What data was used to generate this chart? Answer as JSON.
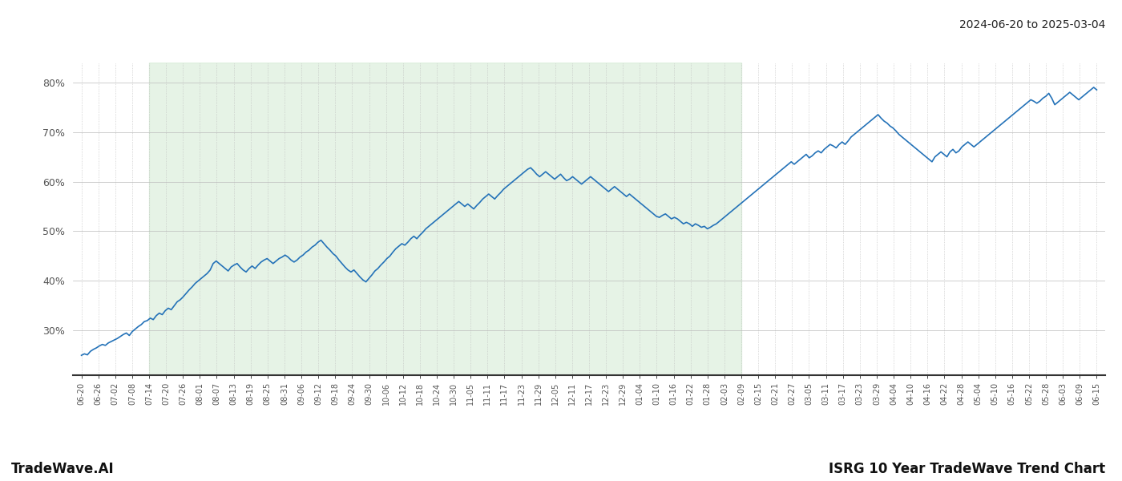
{
  "title_top_right": "2024-06-20 to 2025-03-04",
  "footer_left": "TradeWave.AI",
  "footer_right": "ISRG 10 Year TradeWave Trend Chart",
  "line_color": "#2472b8",
  "line_width": 1.2,
  "shade_color": "#c8e6c9",
  "shade_alpha": 0.45,
  "background_color": "#ffffff",
  "grid_color": "#bbbbbb",
  "ylim": [
    21,
    84
  ],
  "yticks": [
    30,
    40,
    50,
    60,
    70,
    80
  ],
  "x_labels": [
    "06-20",
    "06-26",
    "07-02",
    "07-08",
    "07-14",
    "07-20",
    "07-26",
    "08-01",
    "08-07",
    "08-13",
    "08-19",
    "08-25",
    "08-31",
    "09-06",
    "09-12",
    "09-18",
    "09-24",
    "09-30",
    "10-06",
    "10-12",
    "10-18",
    "10-24",
    "10-30",
    "11-05",
    "11-11",
    "11-17",
    "11-23",
    "11-29",
    "12-05",
    "12-11",
    "12-17",
    "12-23",
    "12-29",
    "01-04",
    "01-10",
    "01-16",
    "01-22",
    "01-28",
    "02-03",
    "02-09",
    "02-15",
    "02-21",
    "02-27",
    "03-05",
    "03-11",
    "03-17",
    "03-23",
    "03-29",
    "04-04",
    "04-10",
    "04-16",
    "04-22",
    "04-28",
    "05-04",
    "05-10",
    "05-16",
    "05-22",
    "05-28",
    "06-03",
    "06-09",
    "06-15"
  ],
  "shade_start_label": "07-14",
  "shade_end_label": "02-09",
  "y_values": [
    25.0,
    25.3,
    25.1,
    25.8,
    26.2,
    26.5,
    26.9,
    27.2,
    27.0,
    27.5,
    27.8,
    28.1,
    28.4,
    28.8,
    29.2,
    29.5,
    29.0,
    29.8,
    30.3,
    30.8,
    31.2,
    31.8,
    32.0,
    32.5,
    32.2,
    33.0,
    33.5,
    33.2,
    34.0,
    34.5,
    34.2,
    35.0,
    35.8,
    36.2,
    36.8,
    37.5,
    38.2,
    38.8,
    39.5,
    40.0,
    40.5,
    41.0,
    41.5,
    42.2,
    43.5,
    44.0,
    43.5,
    43.0,
    42.5,
    42.0,
    42.8,
    43.2,
    43.5,
    42.8,
    42.2,
    41.8,
    42.5,
    43.0,
    42.5,
    43.2,
    43.8,
    44.2,
    44.5,
    44.0,
    43.5,
    44.0,
    44.5,
    44.8,
    45.2,
    44.8,
    44.2,
    43.8,
    44.2,
    44.8,
    45.2,
    45.8,
    46.2,
    46.8,
    47.2,
    47.8,
    48.2,
    47.5,
    46.8,
    46.2,
    45.5,
    45.0,
    44.2,
    43.5,
    42.8,
    42.2,
    41.8,
    42.2,
    41.5,
    40.8,
    40.2,
    39.8,
    40.5,
    41.2,
    42.0,
    42.5,
    43.2,
    43.8,
    44.5,
    45.0,
    45.8,
    46.5,
    47.0,
    47.5,
    47.2,
    47.8,
    48.5,
    49.0,
    48.5,
    49.2,
    49.8,
    50.5,
    51.0,
    51.5,
    52.0,
    52.5,
    53.0,
    53.5,
    54.0,
    54.5,
    55.0,
    55.5,
    56.0,
    55.5,
    55.0,
    55.5,
    55.0,
    54.5,
    55.2,
    55.8,
    56.5,
    57.0,
    57.5,
    57.0,
    56.5,
    57.2,
    57.8,
    58.5,
    59.0,
    59.5,
    60.0,
    60.5,
    61.0,
    61.5,
    62.0,
    62.5,
    62.8,
    62.2,
    61.5,
    61.0,
    61.5,
    62.0,
    61.5,
    61.0,
    60.5,
    61.0,
    61.5,
    60.8,
    60.2,
    60.5,
    61.0,
    60.5,
    60.0,
    59.5,
    60.0,
    60.5,
    61.0,
    60.5,
    60.0,
    59.5,
    59.0,
    58.5,
    58.0,
    58.5,
    59.0,
    58.5,
    58.0,
    57.5,
    57.0,
    57.5,
    57.0,
    56.5,
    56.0,
    55.5,
    55.0,
    54.5,
    54.0,
    53.5,
    53.0,
    52.8,
    53.2,
    53.5,
    53.0,
    52.5,
    52.8,
    52.5,
    52.0,
    51.5,
    51.8,
    51.5,
    51.0,
    51.5,
    51.2,
    50.8,
    51.0,
    50.5,
    50.8,
    51.2,
    51.5,
    52.0,
    52.5,
    53.0,
    53.5,
    54.0,
    54.5,
    55.0,
    55.5,
    56.0,
    56.5,
    57.0,
    57.5,
    58.0,
    58.5,
    59.0,
    59.5,
    60.0,
    60.5,
    61.0,
    61.5,
    62.0,
    62.5,
    63.0,
    63.5,
    64.0,
    63.5,
    64.0,
    64.5,
    65.0,
    65.5,
    64.8,
    65.2,
    65.8,
    66.2,
    65.8,
    66.5,
    67.0,
    67.5,
    67.2,
    66.8,
    67.5,
    68.0,
    67.5,
    68.2,
    69.0,
    69.5,
    70.0,
    70.5,
    71.0,
    71.5,
    72.0,
    72.5,
    73.0,
    73.5,
    72.8,
    72.2,
    71.8,
    71.2,
    70.8,
    70.2,
    69.5,
    69.0,
    68.5,
    68.0,
    67.5,
    67.0,
    66.5,
    66.0,
    65.5,
    65.0,
    64.5,
    64.0,
    65.0,
    65.5,
    66.0,
    65.5,
    65.0,
    66.0,
    66.5,
    65.8,
    66.2,
    67.0,
    67.5,
    68.0,
    67.5,
    67.0,
    67.5,
    68.0,
    68.5,
    69.0,
    69.5,
    70.0,
    70.5,
    71.0,
    71.5,
    72.0,
    72.5,
    73.0,
    73.5,
    74.0,
    74.5,
    75.0,
    75.5,
    76.0,
    76.5,
    76.2,
    75.8,
    76.2,
    76.8,
    77.2,
    77.8,
    76.8,
    75.5,
    76.0,
    76.5,
    77.0,
    77.5,
    78.0,
    77.5,
    77.0,
    76.5,
    77.0,
    77.5,
    78.0,
    78.5,
    79.0,
    78.5
  ]
}
